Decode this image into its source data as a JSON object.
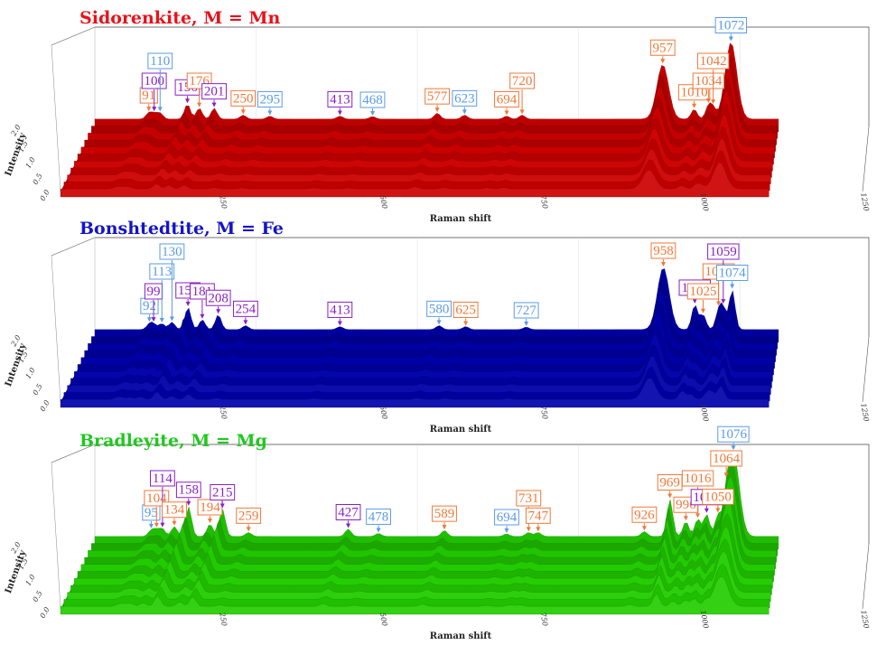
{
  "chart_data": [
    {
      "type": "area",
      "title": "Sidorenkite, M = Mn",
      "xlabel": "Raman shift",
      "ylabel": "Intensity",
      "xlim": [
        0,
        1200
      ],
      "ylim": [
        0,
        2.0
      ],
      "xticks": [
        "250",
        "500",
        "750",
        "1000",
        "1250"
      ],
      "yticks": [
        "0.0",
        "0.5",
        "1.0",
        "1.5",
        "2.0"
      ],
      "color": "#cc0000",
      "peaks": [
        {
          "label": "91",
          "x": 91,
          "h": 0.12,
          "cat": "orange"
        },
        {
          "label": "100",
          "x": 100,
          "h": 0.1,
          "cat": "purple"
        },
        {
          "label": "110",
          "x": 110,
          "h": 0.12,
          "cat": "blue"
        },
        {
          "label": "156",
          "x": 156,
          "h": 0.3,
          "cat": "purple"
        },
        {
          "label": "176",
          "x": 176,
          "h": 0.22,
          "cat": "orange"
        },
        {
          "label": "201",
          "x": 201,
          "h": 0.22,
          "cat": "purple"
        },
        {
          "label": "250",
          "x": 250,
          "h": 0.08,
          "cat": "orange"
        },
        {
          "label": "295",
          "x": 295,
          "h": 0.06,
          "cat": "blue"
        },
        {
          "label": "413",
          "x": 413,
          "h": 0.06,
          "cat": "purple"
        },
        {
          "label": "468",
          "x": 468,
          "h": 0.05,
          "cat": "blue"
        },
        {
          "label": "577",
          "x": 577,
          "h": 0.12,
          "cat": "orange"
        },
        {
          "label": "623",
          "x": 623,
          "h": 0.08,
          "cat": "blue"
        },
        {
          "label": "694",
          "x": 694,
          "h": 0.06,
          "cat": "orange"
        },
        {
          "label": "720",
          "x": 720,
          "h": 0.08,
          "cat": "orange"
        },
        {
          "label": "957",
          "x": 957,
          "h": 1.1,
          "cat": "orange"
        },
        {
          "label": "1010",
          "x": 1010,
          "h": 0.2,
          "cat": "orange"
        },
        {
          "label": "1034",
          "x": 1034,
          "h": 0.25,
          "cat": "orange"
        },
        {
          "label": "1042",
          "x": 1042,
          "h": 0.2,
          "cat": "orange"
        },
        {
          "label": "1072",
          "x": 1072,
          "h": 1.55,
          "cat": "blue"
        }
      ]
    },
    {
      "type": "area",
      "title": "Bonshtedtite, M = Fe",
      "xlabel": "Raman shift",
      "ylabel": "Intensity",
      "xlim": [
        0,
        1200
      ],
      "ylim": [
        0,
        2.0
      ],
      "xticks": [
        "250",
        "500",
        "750",
        "1000",
        "1250"
      ],
      "yticks": [
        "0.0",
        "0.5",
        "1.0",
        "1.5",
        "2.0"
      ],
      "color": "#0000aa",
      "peaks": [
        {
          "label": "92",
          "x": 92,
          "h": 0.1,
          "cat": "blue"
        },
        {
          "label": "99",
          "x": 99,
          "h": 0.1,
          "cat": "purple"
        },
        {
          "label": "113",
          "x": 113,
          "h": 0.12,
          "cat": "blue"
        },
        {
          "label": "130",
          "x": 130,
          "h": 0.15,
          "cat": "blue"
        },
        {
          "label": "157",
          "x": 157,
          "h": 0.45,
          "cat": "purple"
        },
        {
          "label": "181",
          "x": 181,
          "h": 0.2,
          "cat": "purple"
        },
        {
          "label": "208",
          "x": 208,
          "h": 0.3,
          "cat": "purple"
        },
        {
          "label": "254",
          "x": 254,
          "h": 0.08,
          "cat": "purple"
        },
        {
          "label": "413",
          "x": 413,
          "h": 0.06,
          "cat": "purple"
        },
        {
          "label": "580",
          "x": 580,
          "h": 0.08,
          "cat": "blue"
        },
        {
          "label": "625",
          "x": 625,
          "h": 0.06,
          "cat": "orange"
        },
        {
          "label": "727",
          "x": 727,
          "h": 0.05,
          "cat": "blue"
        },
        {
          "label": "958",
          "x": 958,
          "h": 1.25,
          "cat": "orange"
        },
        {
          "label": "1011",
          "x": 1011,
          "h": 0.5,
          "cat": "purple"
        },
        {
          "label": "1025",
          "x": 1025,
          "h": 0.3,
          "cat": "orange"
        },
        {
          "label": "1051",
          "x": 1051,
          "h": 0.35,
          "cat": "orange"
        },
        {
          "label": "1059",
          "x": 1059,
          "h": 0.4,
          "cat": "purple"
        },
        {
          "label": "1074",
          "x": 1074,
          "h": 0.8,
          "cat": "blue"
        }
      ]
    },
    {
      "type": "area",
      "title": "Bradleyite, M = Mg",
      "xlabel": "Raman shift",
      "ylabel": "Intensity",
      "xlim": [
        0,
        1200
      ],
      "ylim": [
        0,
        2.0
      ],
      "xticks": [
        "250",
        "500",
        "750",
        "1000",
        "1250"
      ],
      "yticks": [
        "0.0",
        "0.5",
        "1.0",
        "1.5",
        "2.0"
      ],
      "color": "#22cc00",
      "peaks": [
        {
          "label": "95",
          "x": 95,
          "h": 0.12,
          "cat": "blue"
        },
        {
          "label": "104",
          "x": 104,
          "h": 0.12,
          "cat": "orange"
        },
        {
          "label": "114",
          "x": 114,
          "h": 0.15,
          "cat": "purple"
        },
        {
          "label": "134",
          "x": 134,
          "h": 0.2,
          "cat": "orange"
        },
        {
          "label": "158",
          "x": 158,
          "h": 0.6,
          "cat": "purple"
        },
        {
          "label": "194",
          "x": 194,
          "h": 0.25,
          "cat": "orange"
        },
        {
          "label": "215",
          "x": 215,
          "h": 0.55,
          "cat": "purple"
        },
        {
          "label": "259",
          "x": 259,
          "h": 0.08,
          "cat": "orange"
        },
        {
          "label": "427",
          "x": 427,
          "h": 0.15,
          "cat": "purple"
        },
        {
          "label": "478",
          "x": 478,
          "h": 0.06,
          "cat": "blue"
        },
        {
          "label": "589",
          "x": 589,
          "h": 0.12,
          "cat": "orange"
        },
        {
          "label": "694",
          "x": 694,
          "h": 0.05,
          "cat": "blue"
        },
        {
          "label": "731",
          "x": 731,
          "h": 0.08,
          "cat": "orange"
        },
        {
          "label": "747",
          "x": 747,
          "h": 0.08,
          "cat": "orange"
        },
        {
          "label": "926",
          "x": 926,
          "h": 0.1,
          "cat": "orange"
        },
        {
          "label": "969",
          "x": 969,
          "h": 0.75,
          "cat": "orange"
        },
        {
          "label": "996",
          "x": 996,
          "h": 0.3,
          "cat": "orange"
        },
        {
          "label": "1016",
          "x": 1016,
          "h": 0.35,
          "cat": "orange"
        },
        {
          "label": "1031",
          "x": 1031,
          "h": 0.45,
          "cat": "purple"
        },
        {
          "label": "1050",
          "x": 1050,
          "h": 0.4,
          "cat": "orange"
        },
        {
          "label": "1064",
          "x": 1064,
          "h": 0.35,
          "cat": "orange"
        },
        {
          "label": "1076",
          "x": 1076,
          "h": 1.7,
          "cat": "blue"
        }
      ]
    }
  ],
  "label_colors": {
    "orange": "#f07838",
    "purple": "#8a1fc8",
    "blue": "#5a9be6"
  },
  "title_colors": [
    "#e8121a",
    "#1414c8",
    "#1fc81f"
  ]
}
